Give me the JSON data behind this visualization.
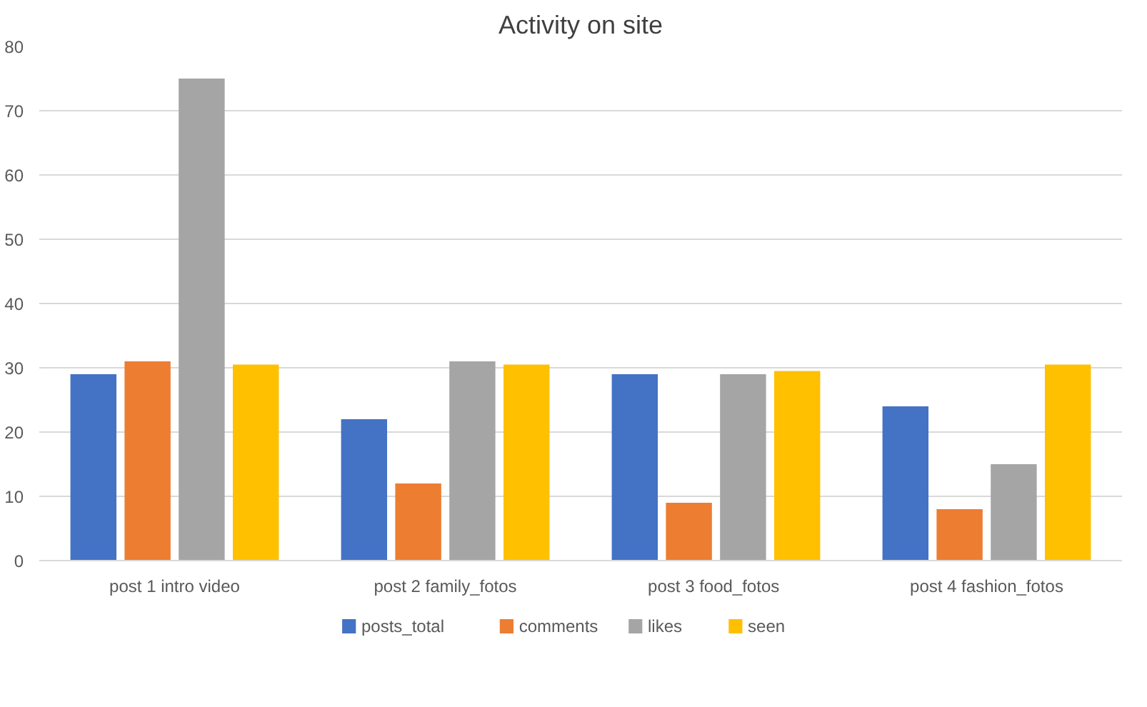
{
  "chart_data": {
    "type": "bar",
    "title": "Activity on site",
    "categories": [
      "post 1 intro video",
      "post 2 family_fotos",
      "post 3  food_fotos",
      "post 4 fashion_fotos"
    ],
    "series": [
      {
        "name": "posts_total",
        "color": "#4472c4",
        "values": [
          29,
          22,
          29,
          24
        ]
      },
      {
        "name": "comments",
        "color": "#ed7d31",
        "values": [
          31,
          12,
          9,
          8
        ]
      },
      {
        "name": "likes",
        "color": "#a5a5a5",
        "values": [
          75,
          31,
          29,
          15
        ]
      },
      {
        "name": "seen",
        "color": "#ffc000",
        "values": [
          30.5,
          30.5,
          29.5,
          30.5
        ]
      }
    ],
    "ylim": [
      0,
      80
    ],
    "yticks": [
      0,
      10,
      20,
      30,
      40,
      50,
      60,
      70,
      80
    ],
    "grid": "y",
    "legend": "bottom"
  }
}
